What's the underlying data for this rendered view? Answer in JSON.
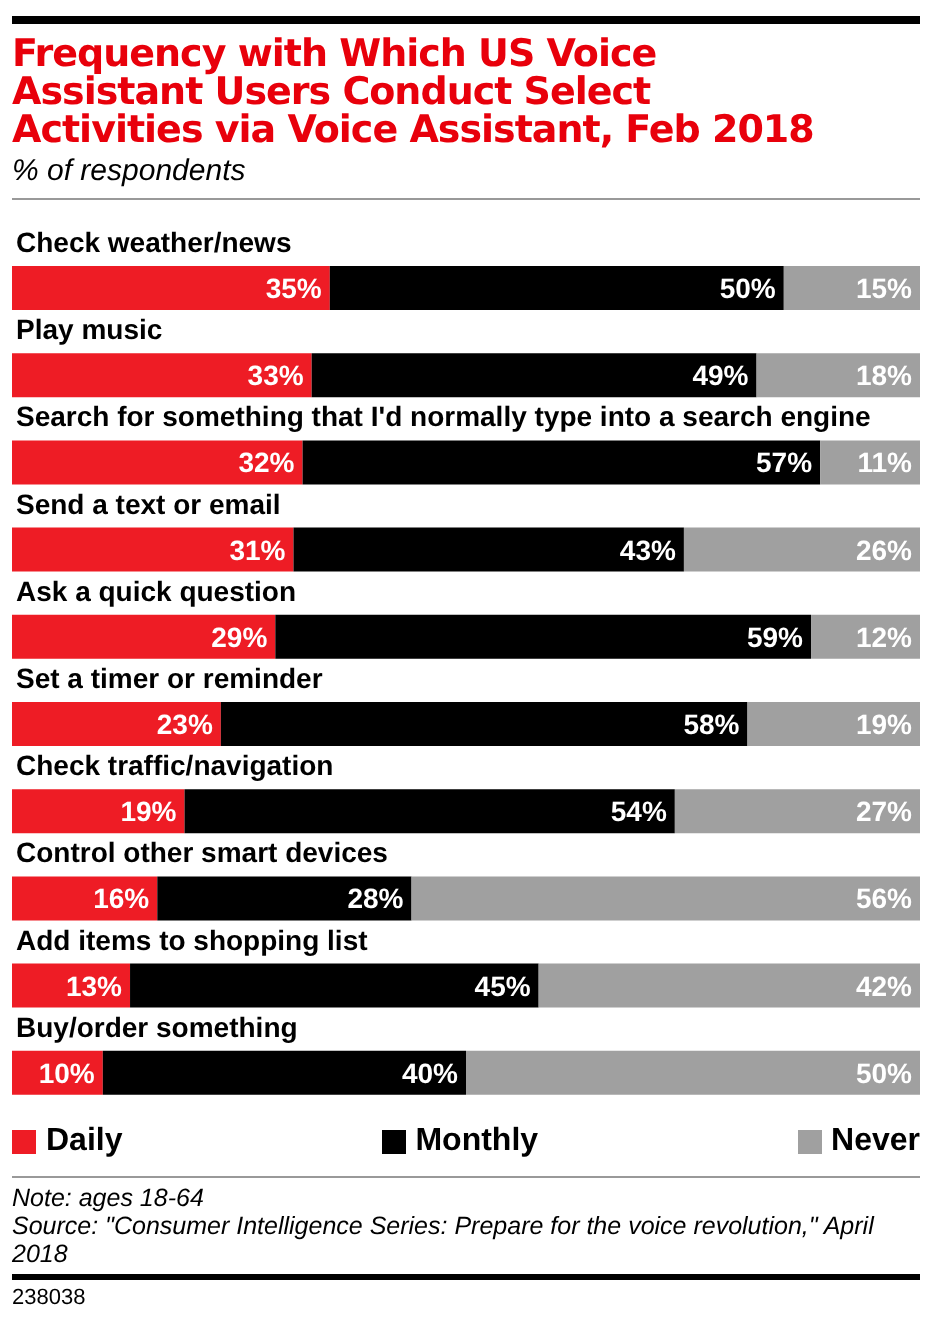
{
  "chart_data": {
    "type": "bar",
    "orientation": "horizontal",
    "stacked": true,
    "title": "Frequency with Which US Voice Assistant Users Conduct Select Activities via Voice Assistant, Feb 2018",
    "subtitle": "% of respondents",
    "categories": [
      "Check weather/news",
      "Play music",
      "Search for something that I'd normally type into a search engine",
      "Send a text or email",
      "Ask a quick question",
      "Set a timer or reminder",
      "Check traffic/navigation",
      "Control other smart devices",
      "Add items to shopping list",
      "Buy/order something"
    ],
    "series": [
      {
        "name": "Daily",
        "color": "#ee1c25",
        "values": [
          35,
          33,
          32,
          31,
          29,
          23,
          19,
          16,
          13,
          10
        ],
        "value_labels": [
          "35%",
          "33%",
          "32%",
          "31%",
          "29%",
          "23%",
          "19%",
          "16%",
          "13%",
          "10%"
        ]
      },
      {
        "name": "Monthly",
        "color": "#000000",
        "values": [
          50,
          49,
          57,
          43,
          59,
          58,
          54,
          28,
          45,
          40
        ],
        "value_labels": [
          "50%",
          "49%",
          "57%",
          "43%",
          "59%",
          "58%",
          "54%",
          "28%",
          "45%",
          "40%"
        ]
      },
      {
        "name": "Never",
        "color": "#a0a0a0",
        "values": [
          15,
          18,
          11,
          26,
          12,
          19,
          27,
          56,
          42,
          50
        ],
        "value_labels": [
          "15%",
          "18%",
          "11%",
          "26%",
          "12%",
          "19%",
          "27%",
          "56%",
          "42%",
          "50%"
        ]
      }
    ],
    "xlim": [
      0,
      100
    ],
    "legend": "bottom",
    "annotations": [
      "Note: ages 18-64",
      "Source: \"Consumer Intelligence Series: Prepare for the voice revolution,\" April 2018",
      "238038"
    ]
  }
}
